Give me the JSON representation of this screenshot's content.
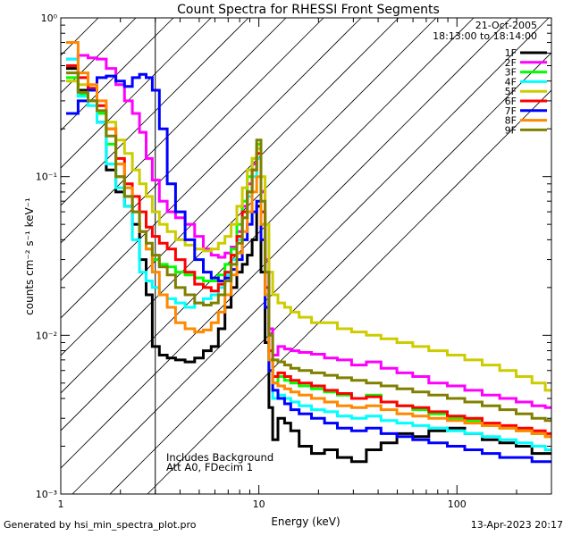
{
  "chart_data": {
    "type": "line",
    "title": "Count Spectra for RHESSI Front Segments",
    "xlabel": "Energy (keV)",
    "ylabel": "counts cm⁻² s⁻¹ keV⁻¹",
    "xscale": "log",
    "yscale": "log",
    "xlim": [
      1,
      300
    ],
    "ylim": [
      0.001,
      1
    ],
    "x_ticks": [
      {
        "value": 1,
        "label": "1"
      },
      {
        "value": 10,
        "label": "10"
      },
      {
        "value": 100,
        "label": "100"
      }
    ],
    "y_ticks": [
      {
        "value": 1,
        "label": "10⁰"
      },
      {
        "value": 0.1,
        "label": "10⁻¹"
      },
      {
        "value": 0.01,
        "label": "10⁻²"
      },
      {
        "value": 0.001,
        "label": "10⁻³"
      }
    ],
    "legend": {
      "position": "top-right",
      "date": "21-Oct-2005",
      "time_range": "18:13:00 to 18:14:00"
    },
    "annotations": [
      "Includes Background",
      "Att A0, FDecim 1"
    ],
    "hatched_region_keV": [
      1,
      3
    ],
    "series": [
      {
        "name": "1F",
        "color": "#000000",
        "x": [
          1.15,
          1.3,
          1.45,
          1.6,
          1.8,
          2.0,
          2.2,
          2.4,
          2.6,
          2.8,
          3.0,
          3.3,
          3.6,
          4.0,
          4.5,
          5.0,
          5.5,
          6.0,
          6.5,
          7.0,
          7.5,
          8.0,
          8.5,
          9.0,
          9.5,
          10.0,
          10.5,
          11.0,
          11.5,
          12.0,
          13,
          14,
          15,
          17,
          20,
          23,
          27,
          32,
          38,
          45,
          55,
          65,
          80,
          100,
          120,
          150,
          180,
          220,
          260,
          300
        ],
        "values": [
          0.48,
          0.35,
          0.3,
          0.22,
          0.11,
          0.08,
          0.065,
          0.05,
          0.03,
          0.018,
          0.0085,
          0.0075,
          0.0072,
          0.007,
          0.0068,
          0.0072,
          0.008,
          0.0085,
          0.011,
          0.015,
          0.02,
          0.025,
          0.028,
          0.032,
          0.04,
          0.065,
          0.025,
          0.009,
          0.0035,
          0.0022,
          0.003,
          0.0028,
          0.0025,
          0.002,
          0.0018,
          0.0019,
          0.0017,
          0.0016,
          0.0019,
          0.0021,
          0.0024,
          0.0023,
          0.0025,
          0.0026,
          0.0024,
          0.0022,
          0.0021,
          0.002,
          0.0018,
          0.0018
        ]
      },
      {
        "name": "2F",
        "color": "#ff00ff",
        "x": [
          1.15,
          1.3,
          1.45,
          1.6,
          1.8,
          2.0,
          2.2,
          2.4,
          2.6,
          2.8,
          3.0,
          3.3,
          3.6,
          4.0,
          4.5,
          5.0,
          5.5,
          6.0,
          6.5,
          7.0,
          7.5,
          8.0,
          8.5,
          9.0,
          9.5,
          10.0,
          10.5,
          11.0,
          11.5,
          12.0,
          13,
          14,
          15,
          17,
          20,
          23,
          27,
          32,
          38,
          45,
          55,
          65,
          80,
          100,
          120,
          150,
          180,
          220,
          260,
          300
        ],
        "values": [
          0.55,
          0.58,
          0.56,
          0.55,
          0.48,
          0.38,
          0.3,
          0.25,
          0.19,
          0.13,
          0.095,
          0.07,
          0.06,
          0.055,
          0.05,
          0.042,
          0.035,
          0.032,
          0.031,
          0.033,
          0.036,
          0.045,
          0.065,
          0.09,
          0.12,
          0.15,
          0.08,
          0.03,
          0.011,
          0.0075,
          0.0085,
          0.0082,
          0.008,
          0.0078,
          0.0076,
          0.0072,
          0.007,
          0.0065,
          0.0068,
          0.0062,
          0.0058,
          0.0055,
          0.005,
          0.0048,
          0.0045,
          0.0042,
          0.004,
          0.0038,
          0.0036,
          0.0035
        ]
      },
      {
        "name": "3F",
        "color": "#00ff00",
        "x": [
          1.15,
          1.3,
          1.45,
          1.6,
          1.8,
          2.0,
          2.2,
          2.4,
          2.6,
          2.8,
          3.0,
          3.3,
          3.6,
          4.0,
          4.5,
          5.0,
          5.5,
          6.0,
          6.5,
          7.0,
          7.5,
          8.0,
          8.5,
          9.0,
          9.5,
          10.0,
          10.5,
          11.0,
          11.5,
          12.0,
          13,
          14,
          15,
          17,
          20,
          23,
          27,
          32,
          38,
          45,
          55,
          65,
          80,
          100,
          120,
          150,
          180,
          220,
          260,
          300
        ],
        "values": [
          0.42,
          0.33,
          0.3,
          0.25,
          0.16,
          0.1,
          0.075,
          0.06,
          0.045,
          0.035,
          0.03,
          0.028,
          0.027,
          0.025,
          0.024,
          0.023,
          0.022,
          0.022,
          0.024,
          0.028,
          0.035,
          0.05,
          0.07,
          0.1,
          0.13,
          0.16,
          0.06,
          0.018,
          0.007,
          0.005,
          0.0055,
          0.0052,
          0.005,
          0.0048,
          0.0046,
          0.0044,
          0.0042,
          0.004,
          0.0042,
          0.0038,
          0.0036,
          0.0034,
          0.0032,
          0.003,
          0.0029,
          0.0027,
          0.0026,
          0.0025,
          0.0024,
          0.0023
        ]
      },
      {
        "name": "4F",
        "color": "#00ffff",
        "x": [
          1.15,
          1.3,
          1.45,
          1.6,
          1.8,
          2.0,
          2.2,
          2.4,
          2.6,
          2.8,
          3.0,
          3.3,
          3.6,
          4.0,
          4.5,
          5.0,
          5.5,
          6.0,
          6.5,
          7.0,
          7.5,
          8.0,
          8.5,
          9.0,
          9.5,
          10.0,
          10.5,
          11.0,
          11.5,
          12.0,
          13,
          14,
          15,
          17,
          20,
          23,
          27,
          32,
          38,
          45,
          55,
          65,
          80,
          100,
          120,
          150,
          180,
          220,
          260,
          300
        ],
        "values": [
          0.55,
          0.32,
          0.28,
          0.22,
          0.12,
          0.085,
          0.065,
          0.04,
          0.025,
          0.022,
          0.02,
          0.018,
          0.017,
          0.016,
          0.015,
          0.016,
          0.017,
          0.018,
          0.02,
          0.024,
          0.03,
          0.04,
          0.055,
          0.075,
          0.1,
          0.13,
          0.05,
          0.015,
          0.006,
          0.004,
          0.0042,
          0.004,
          0.0038,
          0.0036,
          0.0034,
          0.0033,
          0.0031,
          0.003,
          0.0031,
          0.0029,
          0.0028,
          0.0027,
          0.0026,
          0.0025,
          0.0024,
          0.0023,
          0.0022,
          0.0021,
          0.002,
          0.0019
        ]
      },
      {
        "name": "5F",
        "color": "#cccc00",
        "x": [
          1.15,
          1.3,
          1.45,
          1.6,
          1.8,
          2.0,
          2.2,
          2.4,
          2.6,
          2.8,
          3.0,
          3.3,
          3.6,
          4.0,
          4.5,
          5.0,
          5.5,
          6.0,
          6.5,
          7.0,
          7.5,
          8.0,
          8.5,
          9.0,
          9.5,
          10.0,
          10.5,
          11.0,
          11.5,
          12.0,
          13,
          14,
          15,
          17,
          20,
          23,
          27,
          32,
          38,
          45,
          55,
          65,
          80,
          100,
          120,
          150,
          180,
          220,
          260,
          300
        ],
        "values": [
          0.4,
          0.38,
          0.3,
          0.26,
          0.22,
          0.17,
          0.14,
          0.11,
          0.09,
          0.075,
          0.06,
          0.05,
          0.045,
          0.04,
          0.037,
          0.035,
          0.034,
          0.035,
          0.038,
          0.042,
          0.05,
          0.065,
          0.085,
          0.11,
          0.13,
          0.15,
          0.1,
          0.05,
          0.025,
          0.018,
          0.016,
          0.015,
          0.014,
          0.013,
          0.012,
          0.012,
          0.011,
          0.0105,
          0.01,
          0.0095,
          0.009,
          0.0085,
          0.008,
          0.0075,
          0.007,
          0.0065,
          0.006,
          0.0055,
          0.005,
          0.0045
        ]
      },
      {
        "name": "6F",
        "color": "#ff0000",
        "x": [
          1.15,
          1.3,
          1.45,
          1.6,
          1.8,
          2.0,
          2.2,
          2.4,
          2.6,
          2.8,
          3.0,
          3.3,
          3.6,
          4.0,
          4.5,
          5.0,
          5.5,
          6.0,
          6.5,
          7.0,
          7.5,
          8.0,
          8.5,
          9.0,
          9.5,
          10.0,
          10.5,
          11.0,
          11.5,
          12.0,
          13,
          14,
          15,
          17,
          20,
          23,
          27,
          32,
          38,
          45,
          55,
          65,
          80,
          100,
          120,
          150,
          180,
          220,
          260,
          300
        ],
        "values": [
          0.5,
          0.42,
          0.36,
          0.28,
          0.2,
          0.13,
          0.09,
          0.075,
          0.06,
          0.048,
          0.042,
          0.038,
          0.035,
          0.03,
          0.025,
          0.021,
          0.02,
          0.019,
          0.021,
          0.025,
          0.032,
          0.042,
          0.06,
          0.08,
          0.11,
          0.14,
          0.06,
          0.02,
          0.008,
          0.0055,
          0.0058,
          0.0055,
          0.0052,
          0.005,
          0.0048,
          0.0045,
          0.0043,
          0.004,
          0.0041,
          0.0038,
          0.0036,
          0.0035,
          0.0033,
          0.0031,
          0.003,
          0.0028,
          0.0027,
          0.0026,
          0.0025,
          0.0024
        ]
      },
      {
        "name": "7F",
        "color": "#0000ff",
        "x": [
          1.15,
          1.3,
          1.45,
          1.6,
          1.8,
          2.0,
          2.2,
          2.4,
          2.6,
          2.8,
          3.0,
          3.3,
          3.6,
          4.0,
          4.5,
          5.0,
          5.5,
          6.0,
          6.5,
          7.0,
          7.5,
          8.0,
          8.5,
          9.0,
          9.5,
          10.0,
          10.5,
          11.0,
          11.5,
          12.0,
          13,
          14,
          15,
          17,
          20,
          23,
          27,
          32,
          38,
          45,
          55,
          65,
          80,
          100,
          120,
          150,
          180,
          220,
          260,
          300
        ],
        "values": [
          0.25,
          0.3,
          0.35,
          0.42,
          0.43,
          0.4,
          0.37,
          0.42,
          0.44,
          0.42,
          0.35,
          0.2,
          0.09,
          0.06,
          0.04,
          0.03,
          0.025,
          0.023,
          0.022,
          0.023,
          0.026,
          0.03,
          0.04,
          0.05,
          0.06,
          0.07,
          0.04,
          0.015,
          0.006,
          0.0045,
          0.004,
          0.0037,
          0.0034,
          0.0032,
          0.003,
          0.0028,
          0.0026,
          0.0025,
          0.0026,
          0.0024,
          0.0023,
          0.0022,
          0.0021,
          0.002,
          0.0019,
          0.0018,
          0.0017,
          0.0017,
          0.0016,
          0.0016
        ]
      },
      {
        "name": "8F",
        "color": "#ff8800",
        "x": [
          1.15,
          1.3,
          1.45,
          1.6,
          1.8,
          2.0,
          2.2,
          2.4,
          2.6,
          2.8,
          3.0,
          3.3,
          3.6,
          4.0,
          4.5,
          5.0,
          5.5,
          6.0,
          6.5,
          7.0,
          7.5,
          8.0,
          8.5,
          9.0,
          9.5,
          10.0,
          10.5,
          11.0,
          11.5,
          12.0,
          13,
          14,
          15,
          17,
          20,
          23,
          27,
          32,
          38,
          45,
          55,
          65,
          80,
          100,
          120,
          150,
          180,
          220,
          260,
          300
        ],
        "values": [
          0.7,
          0.45,
          0.38,
          0.3,
          0.2,
          0.12,
          0.085,
          0.06,
          0.045,
          0.035,
          0.025,
          0.018,
          0.015,
          0.012,
          0.011,
          0.0105,
          0.0108,
          0.012,
          0.014,
          0.018,
          0.024,
          0.033,
          0.045,
          0.06,
          0.08,
          0.1,
          0.05,
          0.018,
          0.007,
          0.005,
          0.0048,
          0.0046,
          0.0044,
          0.0042,
          0.004,
          0.0038,
          0.0036,
          0.0035,
          0.0036,
          0.0034,
          0.0032,
          0.0031,
          0.003,
          0.0029,
          0.0028,
          0.0027,
          0.0026,
          0.0025,
          0.0024,
          0.0023
        ]
      },
      {
        "name": "9F",
        "color": "#808000",
        "x": [
          1.15,
          1.3,
          1.45,
          1.6,
          1.8,
          2.0,
          2.2,
          2.4,
          2.6,
          2.8,
          3.0,
          3.3,
          3.6,
          4.0,
          4.5,
          5.0,
          5.5,
          6.0,
          6.5,
          7.0,
          7.5,
          8.0,
          8.5,
          9.0,
          9.5,
          10.0,
          10.5,
          11.0,
          11.5,
          12.0,
          13,
          14,
          15,
          17,
          20,
          23,
          27,
          32,
          38,
          45,
          55,
          65,
          80,
          100,
          120,
          150,
          180,
          220,
          260,
          300
        ],
        "values": [
          0.45,
          0.34,
          0.3,
          0.26,
          0.18,
          0.1,
          0.075,
          0.06,
          0.045,
          0.038,
          0.032,
          0.027,
          0.024,
          0.02,
          0.018,
          0.016,
          0.0155,
          0.016,
          0.018,
          0.022,
          0.028,
          0.038,
          0.055,
          0.08,
          0.11,
          0.17,
          0.07,
          0.025,
          0.01,
          0.007,
          0.0068,
          0.0065,
          0.0062,
          0.006,
          0.0058,
          0.0056,
          0.0054,
          0.0052,
          0.005,
          0.0048,
          0.0046,
          0.0044,
          0.0042,
          0.004,
          0.0038,
          0.0036,
          0.0034,
          0.0032,
          0.003,
          0.0029
        ]
      }
    ]
  },
  "footer": {
    "generated_by": "Generated by hsi_min_spectra_plot.pro",
    "timestamp": "13-Apr-2023 20:17"
  }
}
